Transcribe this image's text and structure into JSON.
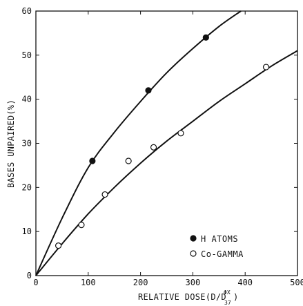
{
  "chart_data": {
    "type": "scatter",
    "title": "",
    "xlabel": "RELATIVE DOSE(D/D",
    "xlabel_sup": "ΦX",
    "xlabel_sub": "37",
    "xlabel_close": ")",
    "ylabel": "BASES UNPAIRED(%)",
    "xlim": [
      0,
      500
    ],
    "ylim": [
      0,
      60
    ],
    "xticks": [
      0,
      100,
      200,
      300,
      400,
      500
    ],
    "yticks": [
      0,
      10,
      20,
      30,
      40,
      50,
      60
    ],
    "grid": false,
    "legend_position": "lower-right",
    "series": [
      {
        "name": "H ATOMS",
        "marker": "filled-circle",
        "color": "#111111",
        "points": [
          {
            "x": 108,
            "y": 26
          },
          {
            "x": 215,
            "y": 42
          },
          {
            "x": 325,
            "y": 54
          }
        ],
        "fit_curve": [
          {
            "x": 0,
            "y": 0
          },
          {
            "x": 50,
            "y": 13
          },
          {
            "x": 100,
            "y": 24.5
          },
          {
            "x": 150,
            "y": 32.5
          },
          {
            "x": 200,
            "y": 39.5
          },
          {
            "x": 250,
            "y": 46
          },
          {
            "x": 300,
            "y": 51.5
          },
          {
            "x": 350,
            "y": 56.5
          },
          {
            "x": 392,
            "y": 60
          }
        ]
      },
      {
        "name": "Co-GAMMA",
        "marker": "open-circle",
        "color": "#111111",
        "points": [
          {
            "x": 43,
            "y": 6.8
          },
          {
            "x": 87,
            "y": 11.5
          },
          {
            "x": 132,
            "y": 18.4
          },
          {
            "x": 177,
            "y": 26
          },
          {
            "x": 225,
            "y": 29.1
          },
          {
            "x": 277,
            "y": 32.3
          },
          {
            "x": 440,
            "y": 47.3
          }
        ],
        "fit_curve": [
          {
            "x": 0,
            "y": 0
          },
          {
            "x": 50,
            "y": 7.2
          },
          {
            "x": 100,
            "y": 14
          },
          {
            "x": 150,
            "y": 20
          },
          {
            "x": 200,
            "y": 25.5
          },
          {
            "x": 250,
            "y": 30.5
          },
          {
            "x": 300,
            "y": 35
          },
          {
            "x": 350,
            "y": 39.5
          },
          {
            "x": 400,
            "y": 43.5
          },
          {
            "x": 450,
            "y": 47.5
          },
          {
            "x": 500,
            "y": 51
          }
        ]
      }
    ]
  }
}
